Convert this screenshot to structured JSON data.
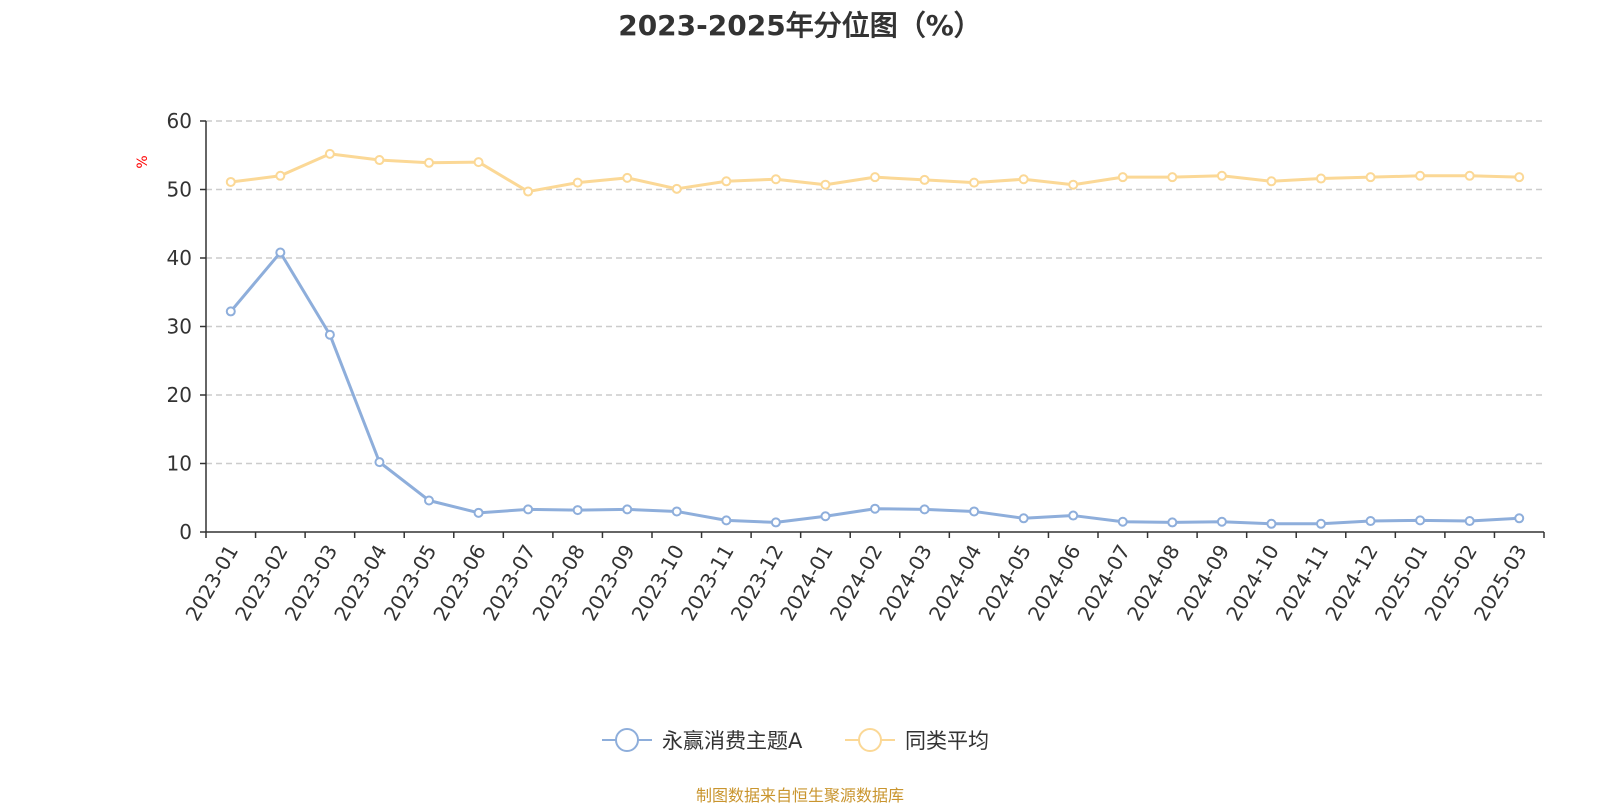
{
  "chart_data": {
    "type": "line",
    "title": "2023-2025年分位图（%）",
    "ylabel": "%",
    "xlabel": "",
    "ylim": [
      0,
      60
    ],
    "yticks": [
      0,
      10,
      20,
      30,
      40,
      50,
      60
    ],
    "grid": true,
    "legend_position": "bottom-center",
    "categories": [
      "2023-01",
      "2023-02",
      "2023-03",
      "2023-04",
      "2023-05",
      "2023-06",
      "2023-07",
      "2023-08",
      "2023-09",
      "2023-10",
      "2023-11",
      "2023-12",
      "2024-01",
      "2024-02",
      "2024-03",
      "2024-04",
      "2024-05",
      "2024-06",
      "2024-07",
      "2024-08",
      "2024-09",
      "2024-10",
      "2024-11",
      "2024-12",
      "2025-01",
      "2025-02",
      "2025-03"
    ],
    "series": [
      {
        "name": "永赢消费主题A",
        "color": "#8eaedb",
        "values": [
          32.2,
          40.8,
          28.8,
          10.2,
          4.6,
          2.8,
          3.3,
          3.2,
          3.3,
          3.0,
          1.7,
          1.4,
          2.3,
          3.4,
          3.3,
          3.0,
          2.0,
          2.4,
          1.5,
          1.4,
          1.5,
          1.2,
          1.2,
          1.6,
          1.7,
          1.6,
          2.0
        ]
      },
      {
        "name": "同类平均",
        "color": "#fbd896",
        "values": [
          51.1,
          52.0,
          55.2,
          54.3,
          53.9,
          54.0,
          49.7,
          51.0,
          51.7,
          50.1,
          51.2,
          51.5,
          50.7,
          51.8,
          51.4,
          51.0,
          51.5,
          50.7,
          51.8,
          51.8,
          52.0,
          51.2,
          51.6,
          51.8,
          52.0,
          52.0,
          51.8
        ]
      }
    ]
  },
  "footer": {
    "source": "制图数据来自恒生聚源数据库"
  }
}
